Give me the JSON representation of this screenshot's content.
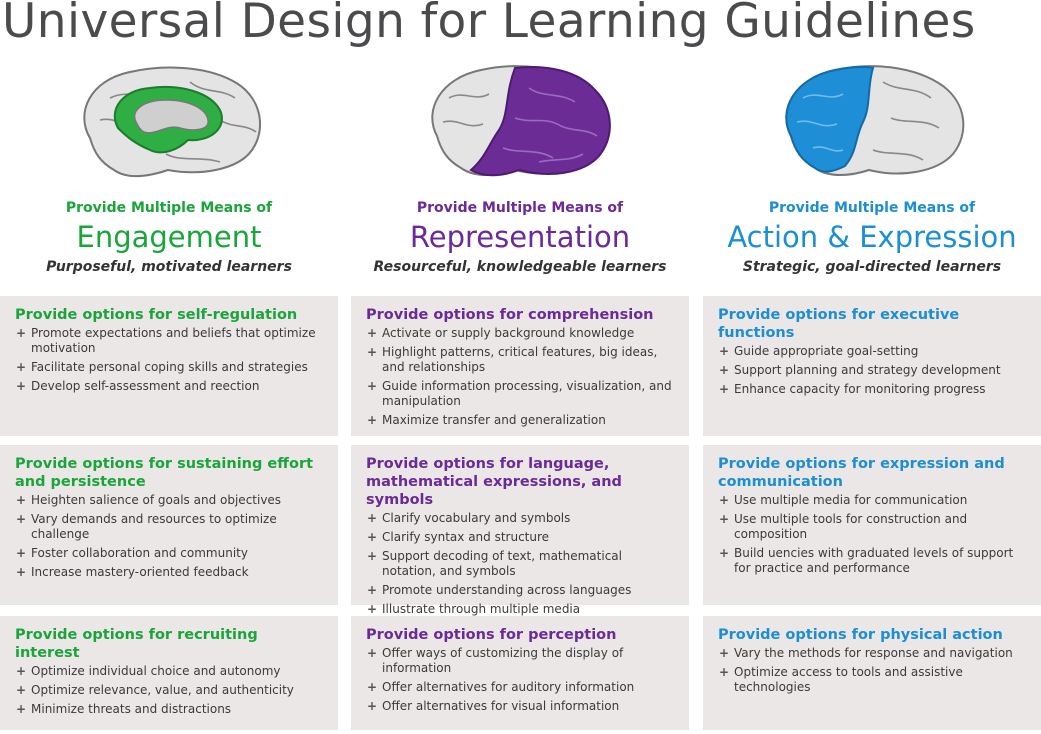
{
  "title": "Universal Design for Learning Guidelines",
  "colors": {
    "engagement": "#1aa53b",
    "representation": "#6a2a9a",
    "action_expression": "#1b8fd2"
  },
  "columns": [
    {
      "pre": "Provide Multiple Means of",
      "network": "Engagement",
      "subtitle": "Purposeful, motivated learners",
      "icon": "brain-affective-network-icon",
      "boxes": [
        {
          "title": "Provide options for self-regulation",
          "items": [
            "Promote expectations and beliefs that optimize motivation",
            "Facilitate personal coping skills and strategies",
            "Develop self-assessment and reection"
          ]
        },
        {
          "title": "Provide options for sustaining effort and persistence",
          "items": [
            "Heighten salience of goals and objectives",
            "Vary demands and resources to optimize challenge",
            "Foster collaboration and community",
            "Increase mastery-oriented feedback"
          ]
        },
        {
          "title": "Provide options for recruiting interest",
          "items": [
            "Optimize individual choice and autonomy",
            "Optimize relevance, value, and authenticity",
            "Minimize threats and distractions"
          ]
        }
      ]
    },
    {
      "pre": "Provide Multiple Means of",
      "network": "Representation",
      "subtitle": "Resourceful, knowledgeable learners",
      "icon": "brain-recognition-network-icon",
      "boxes": [
        {
          "title": "Provide options for comprehension",
          "items": [
            "Activate or supply background knowledge",
            "Highlight patterns, critical features, big ideas, and relationships",
            "Guide information processing, visualization, and manipulation",
            "Maximize transfer and generalization"
          ]
        },
        {
          "title": "Provide options for language, mathematical expressions, and symbols",
          "items": [
            "Clarify vocabulary and symbols",
            "Clarify syntax and structure",
            "Support decoding of text, mathematical notation, and symbols",
            "Promote understanding across languages",
            "Illustrate through multiple media"
          ]
        },
        {
          "title": "Provide options for perception",
          "items": [
            "Offer ways of customizing the display of information",
            "Offer alternatives for auditory information",
            "Offer alternatives for visual information"
          ]
        }
      ]
    },
    {
      "pre": "Provide Multiple Means of",
      "network": "Action & Expression",
      "subtitle": "Strategic, goal-directed learners",
      "icon": "brain-strategic-network-icon",
      "boxes": [
        {
          "title": "Provide options for executive functions",
          "items": [
            "Guide appropriate goal-setting",
            "Support planning and strategy development",
            "Enhance capacity for monitoring progress"
          ]
        },
        {
          "title": "Provide options for expression and communication",
          "items": [
            "Use multiple media for communication",
            "Use multiple tools for construction and composition",
            "Build uencies with graduated levels of support for practice and performance"
          ]
        },
        {
          "title": "Provide options for physical action",
          "items": [
            "Vary the methods for response and navigation",
            "Optimize access to tools and assistive technologies"
          ]
        }
      ]
    }
  ]
}
